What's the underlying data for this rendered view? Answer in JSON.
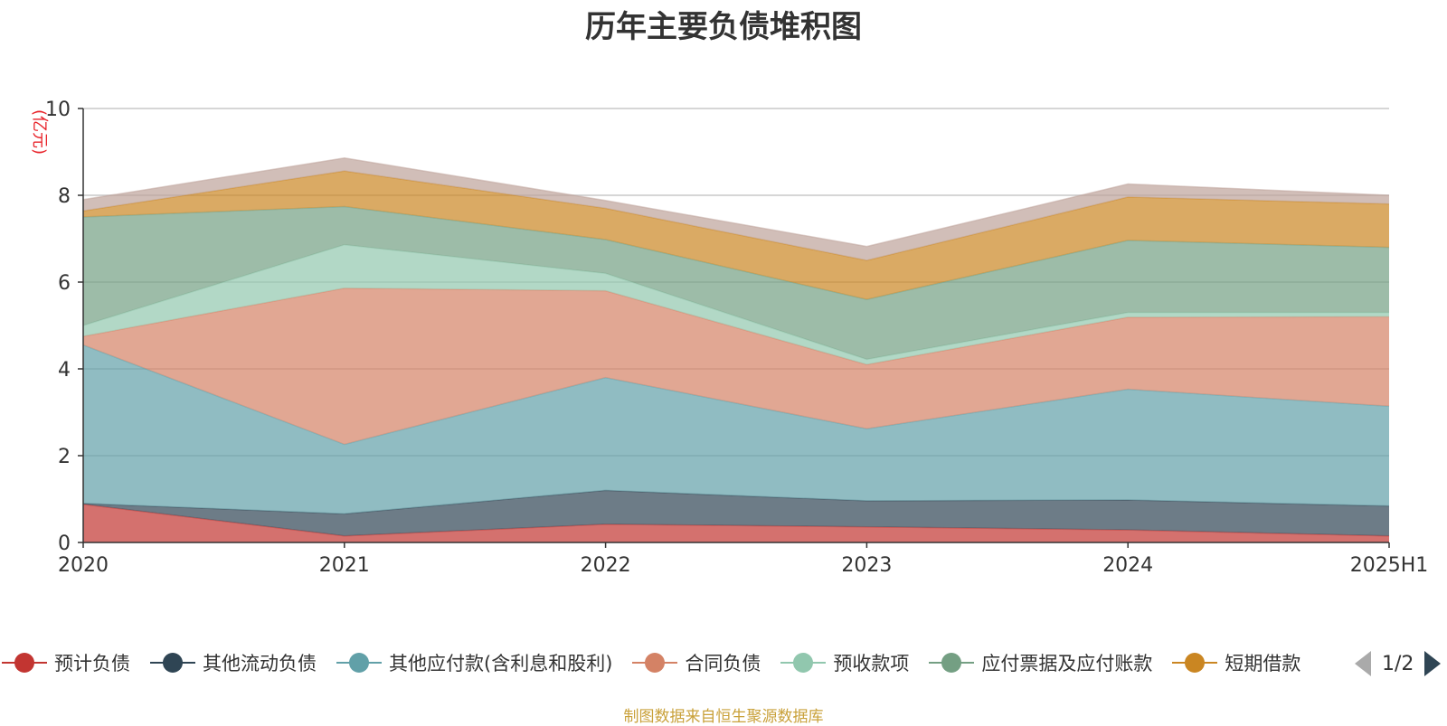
{
  "title": "历年主要负债堆积图",
  "source_note": "制图数据来自恒生聚源数据库",
  "legend_pager": {
    "page_text": "1/2"
  },
  "chart_data": {
    "type": "area",
    "stacked": true,
    "title": "历年主要负债堆积图",
    "y_unit": "(亿元)",
    "categories": [
      "2020",
      "2021",
      "2022",
      "2023",
      "2024",
      "2025H1"
    ],
    "ylim": [
      0,
      10
    ],
    "yticks": [
      0,
      2,
      4,
      6,
      8,
      10
    ],
    "grid": true,
    "legend_position": "bottom",
    "series": [
      {
        "name": "预计负债",
        "color": "#c23531",
        "values": [
          0.88,
          0.15,
          0.42,
          0.36,
          0.29,
          0.15
        ]
      },
      {
        "name": "其他流动负债",
        "color": "#2f4554",
        "values": [
          0.02,
          0.51,
          0.78,
          0.6,
          0.69,
          0.69
        ]
      },
      {
        "name": "其他应付款(含利息和股利)",
        "color": "#61a0a8",
        "values": [
          3.65,
          1.6,
          2.6,
          1.66,
          2.55,
          2.3
        ]
      },
      {
        "name": "合同负债",
        "color": "#d48265",
        "values": [
          0.2,
          3.6,
          2.0,
          1.48,
          1.66,
          2.06
        ]
      },
      {
        "name": "预收款项",
        "color": "#91c7ae",
        "values": [
          0.25,
          1.0,
          0.4,
          0.12,
          0.11,
          0.1
        ]
      },
      {
        "name": "应付票据及应付账款",
        "color": "#749f83",
        "values": [
          2.5,
          0.88,
          0.78,
          1.38,
          1.66,
          1.5
        ]
      },
      {
        "name": "短期借款",
        "color": "#ca8622",
        "values": [
          0.14,
          0.82,
          0.72,
          0.9,
          1.0,
          1.0
        ]
      },
      {
        "name": "",
        "color": "#bda29a",
        "values": [
          0.26,
          0.3,
          0.18,
          0.32,
          0.3,
          0.2
        ]
      }
    ]
  }
}
